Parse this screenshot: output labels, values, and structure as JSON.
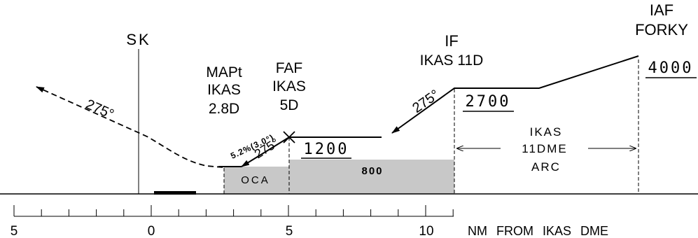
{
  "colors": {
    "ink": "#000000",
    "oca_fill": "#c8c8c8",
    "background": "#ffffff"
  },
  "fixes": {
    "sk": "SK",
    "mapt": {
      "name": "MAPt",
      "ident": "IKAS",
      "dist": "2.8D"
    },
    "faf": {
      "name": "FAF",
      "ident": "IKAS",
      "dist": "5D"
    },
    "if_fix": {
      "name": "IF",
      "ident": "IKAS 11D"
    },
    "iaf": {
      "name": "IAF",
      "ident": "FORKY"
    }
  },
  "altitudes": {
    "iaf": "4000",
    "if_fix": "2700",
    "faf": "1200"
  },
  "tracks": {
    "missed": "275°",
    "inbound_if": "275°",
    "final": "275°"
  },
  "gradient": "5.2%(3.0°)",
  "oca": {
    "label": "OCA",
    "value": "800"
  },
  "arc_label": [
    "IKAS",
    "11DME",
    "ARC"
  ],
  "axis": {
    "ticks": [
      "5",
      "0",
      "5",
      "10"
    ],
    "caption": "NM FROM IKAS DME"
  }
}
